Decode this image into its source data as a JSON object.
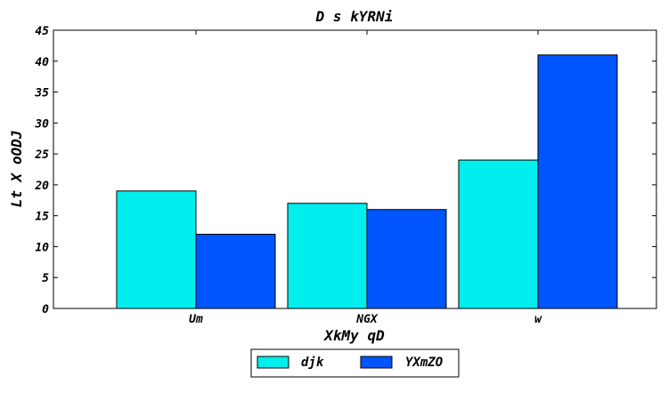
{
  "chart_data": {
    "type": "bar",
    "title": "D s kYRNi",
    "xlabel": "XkMy qD",
    "ylabel": "Lt X oODJ",
    "categories": [
      "Um",
      "NGX",
      "w"
    ],
    "series": [
      {
        "name": "djk",
        "values": [
          19,
          17,
          24
        ],
        "color": "#00eeee"
      },
      {
        "name": "YXmZO",
        "values": [
          12,
          16,
          41
        ],
        "color": "#0055ff"
      }
    ],
    "ylim": [
      0,
      45
    ],
    "yticks": [
      "0",
      "5",
      "10",
      "15",
      "20",
      "25",
      "30",
      "35",
      "40",
      "45"
    ],
    "grid": false,
    "legend_position": "bottom-center"
  }
}
